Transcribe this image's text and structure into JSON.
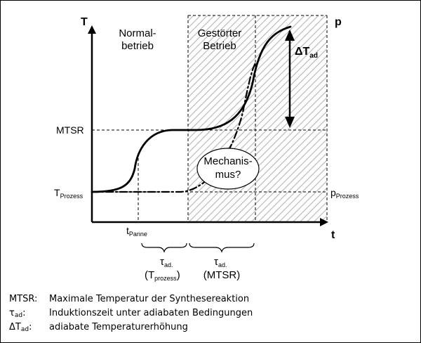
{
  "diagram": {
    "axes": {
      "y_left_label": "T",
      "y_right_label": "p",
      "x_label": "t"
    },
    "levels": {
      "mtsr": "MTSR",
      "t_prozess_main": "T",
      "t_prozess_sub": "Prozess",
      "p_prozess_main": "p",
      "p_prozess_sub": "Prozess"
    },
    "regions": {
      "normal_line1": "Normal-",
      "normal_line2": "betrieb",
      "disturbed_line1": "Gestörter",
      "disturbed_line2": "Betrieb"
    },
    "delta_t": {
      "main": "ΔT",
      "sub": "ad"
    },
    "mechanism": {
      "line1": "Mechanis-",
      "line2": "mus?"
    },
    "t_panne": {
      "main": "t",
      "sub": "Panne"
    },
    "tau_1": {
      "main": "τ",
      "sub": "ad.",
      "paren_main": "(T",
      "paren_sub": "prozess",
      "paren_close": ")"
    },
    "tau_2": {
      "main": "τ",
      "sub": "ad.",
      "paren": "(MTSR)"
    }
  },
  "legend": [
    {
      "abbr": "MTSR:",
      "desc": "Maximale Temperatur der Synthesereaktion"
    },
    {
      "abbr_main": "τ",
      "abbr_sub": "ad",
      "abbr_suffix": ":",
      "desc": "Induktionszeit unter adiabaten Bedingungen"
    },
    {
      "abbr_main": "ΔT",
      "abbr_sub": "ad",
      "abbr_suffix": ":",
      "desc": "adiabate Temperaturerhöhung"
    }
  ]
}
